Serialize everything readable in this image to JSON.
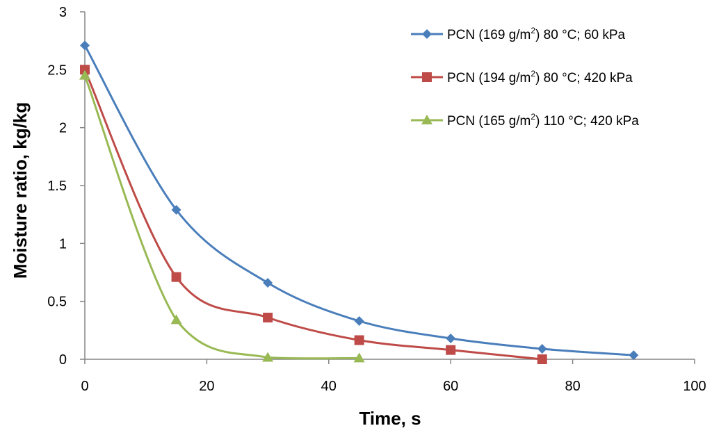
{
  "chart_data": {
    "type": "line",
    "smooth": true,
    "title": "",
    "xlabel": "Time, s",
    "ylabel": "Moisture ratio, kg/kg",
    "xlim": [
      0,
      100
    ],
    "ylim": [
      0,
      3
    ],
    "x_ticks": [
      0,
      20,
      40,
      60,
      80,
      100
    ],
    "x_tick_labels": [
      "0",
      "20",
      "40",
      "60",
      "80",
      "100"
    ],
    "y_ticks": [
      0,
      0.5,
      1,
      1.5,
      2,
      2.5,
      3
    ],
    "y_tick_labels": [
      "0",
      "0.5",
      "1",
      "1.5",
      "2",
      "2.5",
      "3"
    ],
    "grid": false,
    "legend_position": "top-right",
    "series": [
      {
        "name": "PCN (169 g/m2) 80 °C; 60 kPa",
        "label_parts": {
          "before": "PCN (169 g/m",
          "sup": "2",
          "after": ") 80 °C; 60 kPa"
        },
        "color": "#4a7ebb",
        "marker": "diamond",
        "x": [
          0,
          15,
          30,
          45,
          60,
          75,
          90
        ],
        "y": [
          2.71,
          1.29,
          0.66,
          0.33,
          0.18,
          0.09,
          0.035
        ]
      },
      {
        "name": "PCN (194 g/m2) 80 °C; 420 kPa",
        "label_parts": {
          "before": "PCN (194 g/m",
          "sup": "2",
          "after": ") 80 °C; 420 kPa"
        },
        "color": "#be4b48",
        "marker": "square",
        "x": [
          0,
          15,
          30,
          45,
          60,
          75
        ],
        "y": [
          2.5,
          0.71,
          0.36,
          0.165,
          0.08,
          0.0
        ]
      },
      {
        "name": "PCN (165 g/m2) 110 °C; 420 kPa",
        "label_parts": {
          "before": "PCN (165 g/m",
          "sup": "2",
          "after": ") 110 °C; 420 kPa"
        },
        "color": "#98b954",
        "marker": "triangle",
        "x": [
          0,
          15,
          30,
          45
        ],
        "y": [
          2.45,
          0.34,
          0.015,
          0.01
        ]
      }
    ]
  }
}
